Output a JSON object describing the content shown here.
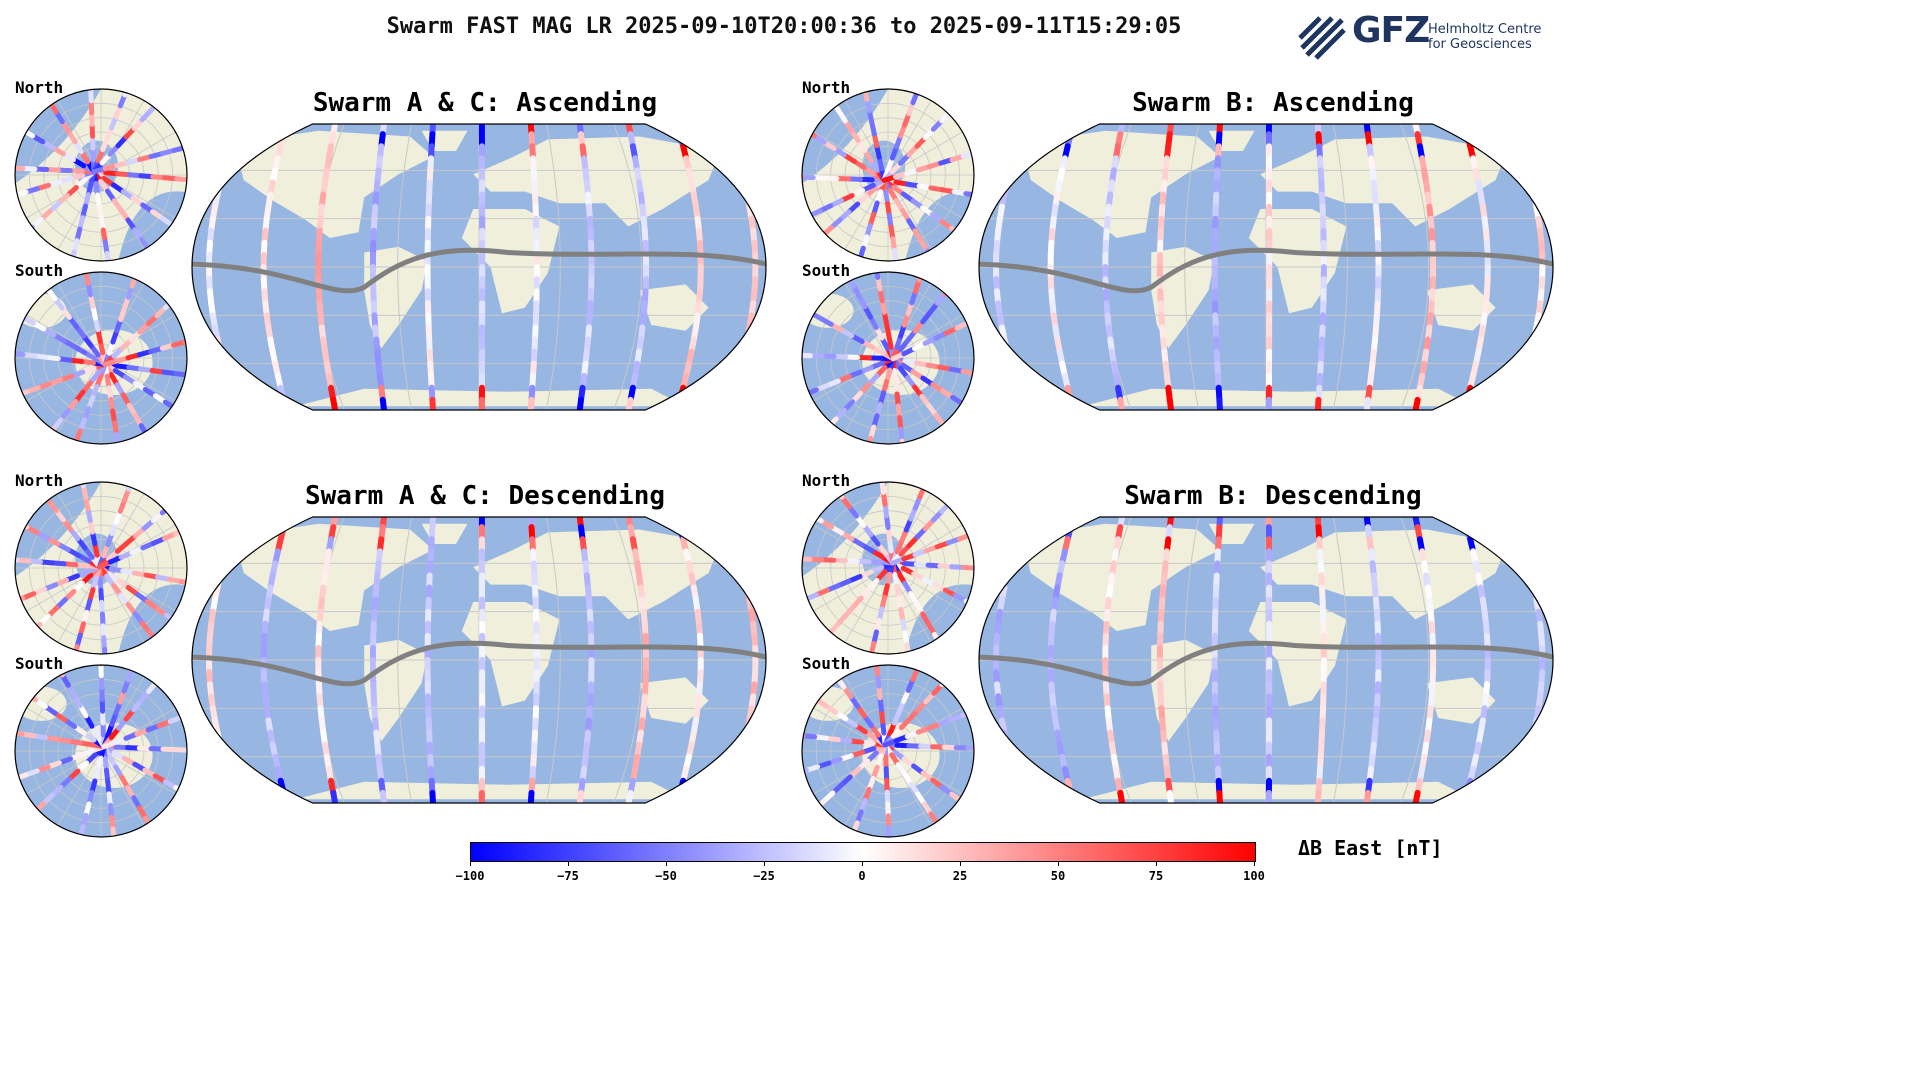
{
  "header": {
    "title": "Swarm FAST MAG LR 2025-09-10T20:00:36 to 2025-09-11T15:29:05"
  },
  "logo": {
    "text": "GFZ",
    "subtitle_line1": "Helmholtz Centre",
    "subtitle_line2": "for Geosciences"
  },
  "panels": [
    {
      "title": "Swarm A & C: Ascending",
      "north_label": "North",
      "south_label": "South"
    },
    {
      "title": "Swarm B: Ascending",
      "north_label": "North",
      "south_label": "South"
    },
    {
      "title": "Swarm A & C: Descending",
      "north_label": "North",
      "south_label": "South"
    },
    {
      "title": "Swarm B: Descending",
      "north_label": "North",
      "south_label": "South"
    }
  ],
  "colorbar": {
    "label": "ΔB East [nT]",
    "ticks": [
      "−100",
      "−75",
      "−50",
      "−25",
      "0",
      "25",
      "50",
      "75",
      "100"
    ],
    "min": -100,
    "max": 100,
    "low_color": "#0000ff",
    "mid_color": "#ffffff",
    "high_color": "#ff0000"
  },
  "colors": {
    "ocean": "#97b6e1",
    "land": "#efefdb",
    "grid": "#c8c8c8",
    "dip_equator": "#808080",
    "brand": "#1f3560"
  }
}
